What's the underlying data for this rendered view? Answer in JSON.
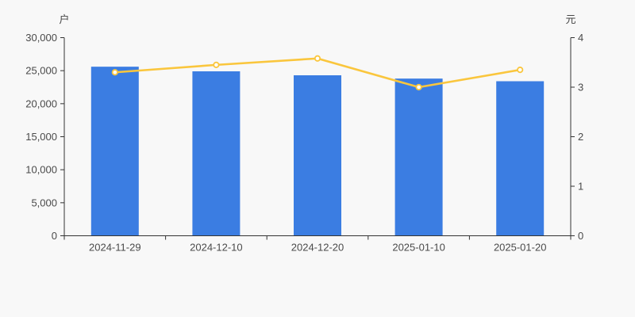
{
  "chart_data": {
    "type": "bar",
    "subtype": "dual-axis-bar-line",
    "title": "",
    "categories": [
      "2024-11-29",
      "2024-12-10",
      "2024-12-20",
      "2025-01-10",
      "2025-01-20"
    ],
    "series": [
      {
        "type": "bar",
        "axis": "left",
        "color": "#3b7de2",
        "values": [
          25600,
          24900,
          24300,
          23800,
          23400
        ]
      },
      {
        "type": "line",
        "axis": "right",
        "color": "#fac63d",
        "values": [
          3.3,
          3.45,
          3.58,
          3.0,
          3.35
        ]
      }
    ],
    "left_axis": {
      "title": "户",
      "min": 0,
      "max": 30000,
      "interval": 5000,
      "tick_labels": [
        "0",
        "5,000",
        "10,000",
        "15,000",
        "20,000",
        "25,000",
        "30,000"
      ]
    },
    "right_axis": {
      "title": "元",
      "min": 0,
      "max": 4,
      "interval": 1,
      "tick_labels": [
        "0",
        "1",
        "2",
        "3",
        "4"
      ]
    },
    "grid": false,
    "legend": false
  },
  "style": {
    "background": "#f8f8f8",
    "axis_color": "#333333",
    "text_color": "#4a4a4a",
    "bar_color": "#3b7de2",
    "line_color": "#fac63d",
    "marker_fill": "#ffffff"
  }
}
